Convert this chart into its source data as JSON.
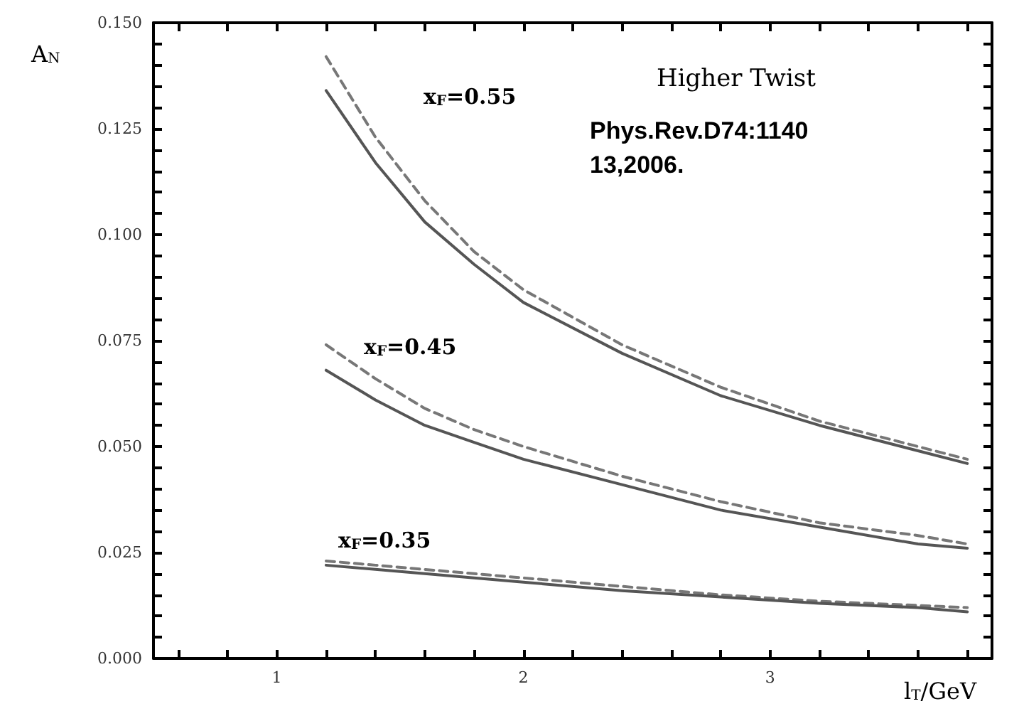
{
  "chart_data": {
    "type": "line",
    "title": "Higher Twist",
    "xlabel": "l$_{T}$/GeV",
    "ylabel": "A$_{N}$",
    "annotations": [
      "Phys.Rev.D74:1140\n13,2006.",
      "x$_{F}$=0.55",
      "x$_{F}$=0.45",
      "x$_{F}$=0.35"
    ],
    "x": [
      1.2,
      1.4,
      1.6,
      1.8,
      2.0,
      2.4,
      2.8,
      3.2,
      3.6,
      3.8
    ],
    "series": [
      {
        "color": "#777777",
        "line_style": "dashed",
        "values": [
          0.142,
          0.123,
          0.108,
          0.096,
          0.087,
          0.074,
          0.064,
          0.056,
          0.05,
          0.047
        ]
      },
      {
        "color": "#555555",
        "line_style": "solid",
        "values": [
          0.134,
          0.117,
          0.103,
          0.093,
          0.084,
          0.072,
          0.062,
          0.055,
          0.049,
          0.046
        ]
      },
      {
        "color": "#777777",
        "line_style": "dashed",
        "values": [
          0.074,
          0.066,
          0.059,
          0.054,
          0.05,
          0.043,
          0.037,
          0.032,
          0.029,
          0.027
        ]
      },
      {
        "color": "#555555",
        "line_style": "solid",
        "values": [
          0.068,
          0.061,
          0.055,
          0.051,
          0.047,
          0.041,
          0.035,
          0.031,
          0.027,
          0.026
        ]
      },
      {
        "color": "#777777",
        "line_style": "dashed",
        "values": [
          0.023,
          0.022,
          0.021,
          0.02,
          0.019,
          0.017,
          0.015,
          0.0135,
          0.0125,
          0.012
        ]
      },
      {
        "color": "#555555",
        "line_style": "solid",
        "values": [
          0.022,
          0.021,
          0.02,
          0.019,
          0.018,
          0.016,
          0.0145,
          0.013,
          0.012,
          0.011
        ]
      }
    ],
    "xlim": [
      0.5,
      3.9
    ],
    "xticks": [
      {
        "value": 0.6,
        "label": null
      },
      {
        "value": 0.8,
        "label": null
      },
      1,
      {
        "value": 1.2,
        "label": null
      },
      {
        "value": 1.4,
        "label": null
      },
      {
        "value": 1.6,
        "label": null
      },
      {
        "value": 1.8,
        "label": null
      },
      2,
      {
        "value": 2.2,
        "label": null
      },
      {
        "value": 2.4,
        "label": null
      },
      {
        "value": 2.6,
        "label": null
      },
      {
        "value": 2.8,
        "label": null
      },
      3,
      {
        "value": 3.2,
        "label": null
      },
      {
        "value": 3.4,
        "label": null
      },
      {
        "value": 3.6,
        "label": null
      },
      {
        "value": 3.8,
        "label": null
      }
    ],
    "ylim": [
      0,
      0.15
    ],
    "yticks": [
      {
        "value": 0,
        "label": "0.000"
      },
      {
        "value": 0.005,
        "label": null
      },
      {
        "value": 0.01,
        "label": null
      },
      {
        "value": 0.015,
        "label": null
      },
      {
        "value": 0.02,
        "label": null
      },
      {
        "value": 0.025,
        "label": "0.025"
      },
      {
        "value": 0.03,
        "label": null
      },
      {
        "value": 0.035,
        "label": null
      },
      {
        "value": 0.04,
        "label": null
      },
      {
        "value": 0.045,
        "label": null
      },
      {
        "value": 0.05,
        "label": "0.050"
      },
      {
        "value": 0.055,
        "label": null
      },
      {
        "value": 0.06,
        "label": null
      },
      {
        "value": 0.065,
        "label": null
      },
      {
        "value": 0.07,
        "label": null
      },
      {
        "value": 0.075,
        "label": "0.075"
      },
      {
        "value": 0.08,
        "label": null
      },
      {
        "value": 0.085,
        "label": null
      },
      {
        "value": 0.09,
        "label": null
      },
      {
        "value": 0.095,
        "label": null
      },
      {
        "value": 0.1,
        "label": "0.100"
      },
      {
        "value": 0.105,
        "label": null
      },
      {
        "value": 0.11,
        "label": null
      },
      {
        "value": 0.115,
        "label": null
      },
      {
        "value": 0.12,
        "label": null
      },
      {
        "value": 0.125,
        "label": "0.125"
      },
      {
        "value": 0.13,
        "label": null
      },
      {
        "value": 0.135,
        "label": null
      },
      {
        "value": 0.14,
        "label": null
      },
      {
        "value": 0.145,
        "label": null
      },
      {
        "value": 0.15,
        "label": "0.150"
      }
    ],
    "grid": false,
    "marker": "none"
  }
}
